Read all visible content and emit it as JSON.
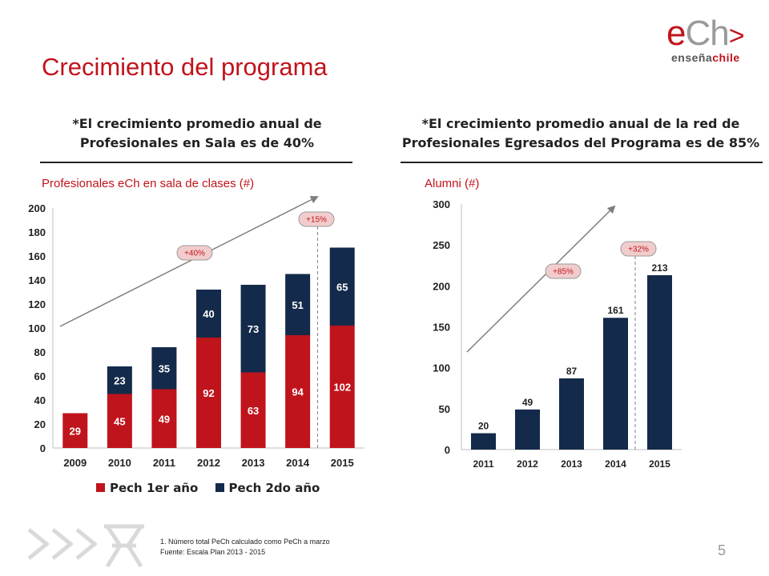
{
  "title": "Crecimiento del programa",
  "logo": {
    "e": "e",
    "ch": "Ch",
    "arrow": ">",
    "sub_a": "enseña",
    "sub_b": "chile"
  },
  "left": {
    "headline_1": "*El crecimiento promedio anual de",
    "headline_2": "Profesionales en Sala es de 40%",
    "subtitle": "Profesionales eCh en sala de clases (#)"
  },
  "right": {
    "headline_1": "*El crecimiento promedio anual de la red de",
    "headline_2": "Profesionales Egresados del Programa es de 85%",
    "subtitle": "Alumni (#)"
  },
  "footnote": {
    "line1": "1. Número total PeCh calculado como PeCh a marzo",
    "line2": "Fuente: Escala Plan 2013 - 2015"
  },
  "page_number": "5",
  "colors": {
    "red": "#c0141c",
    "navy": "#142a4a",
    "badge": "#f2cccc",
    "arrow": "#7f7f7f"
  },
  "chart_data": [
    {
      "type": "bar",
      "stacked": true,
      "title": "Profesionales eCh en sala de clases (#)",
      "categories": [
        "2009",
        "2010",
        "2011",
        "2012",
        "2013",
        "2014",
        "2015"
      ],
      "series": [
        {
          "name": "Pech 1er año",
          "color": "#c0141c",
          "values": [
            29,
            45,
            49,
            92,
            63,
            94,
            102
          ]
        },
        {
          "name": "Pech 2do año",
          "color": "#142a4a",
          "values": [
            0,
            23,
            35,
            40,
            73,
            51,
            65
          ]
        }
      ],
      "yticks": [
        "0",
        "20",
        "40",
        "60",
        "80",
        "100",
        "120",
        "140",
        "160",
        "180",
        "200"
      ],
      "ylim": [
        0,
        200
      ],
      "legend": "bottom",
      "annotations": [
        "+40%",
        "+15%"
      ]
    },
    {
      "type": "bar",
      "title": "Alumni (#)",
      "categories": [
        "2011",
        "2012",
        "2013",
        "2014",
        "2015"
      ],
      "values": [
        20,
        49,
        87,
        161,
        213
      ],
      "color": "#142a4a",
      "yticks": [
        "0",
        "50",
        "100",
        "150",
        "200",
        "250",
        "300"
      ],
      "ylim": [
        0,
        300
      ],
      "annotations": [
        "+85%",
        "+32%"
      ]
    }
  ]
}
